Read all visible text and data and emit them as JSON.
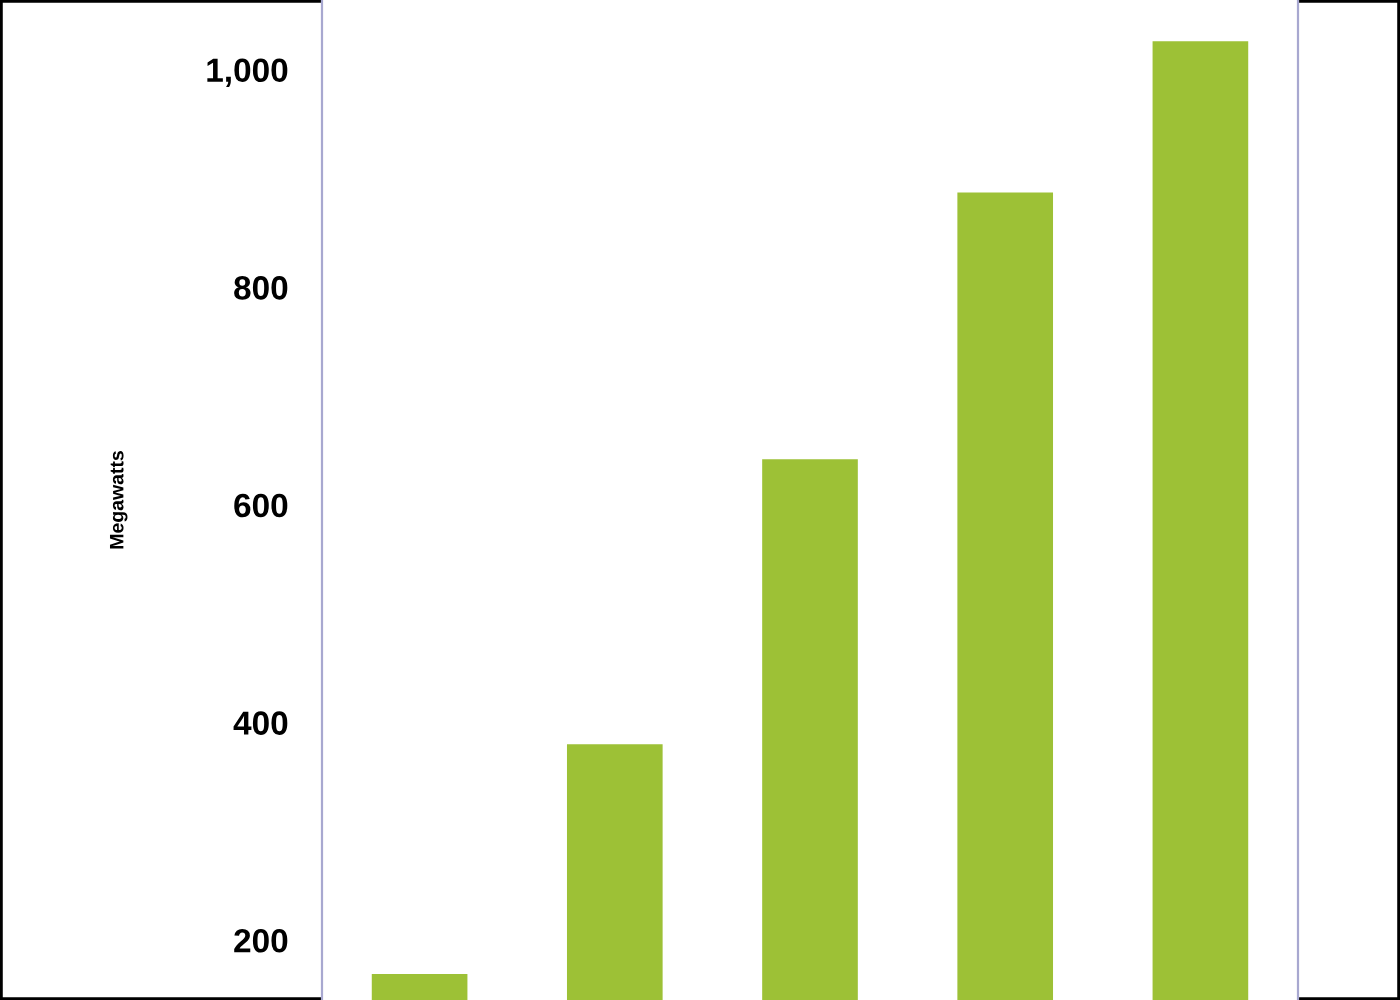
{
  "chart_data": {
    "type": "bar",
    "ylabel": "Megawatts",
    "categories": [
      null,
      null,
      null,
      null,
      null
    ],
    "values": [
      169,
      380,
      642,
      887,
      1026
    ],
    "color": "#9dc136",
    "ylim": [
      145,
      1064
    ],
    "yticks": [
      {
        "value": 200,
        "label": "200"
      },
      {
        "value": 400,
        "label": "400"
      },
      {
        "value": 600,
        "label": "600"
      },
      {
        "value": 800,
        "label": "800"
      },
      {
        "value": 1000,
        "label": "1,000"
      }
    ],
    "grid": false,
    "legend": false
  }
}
